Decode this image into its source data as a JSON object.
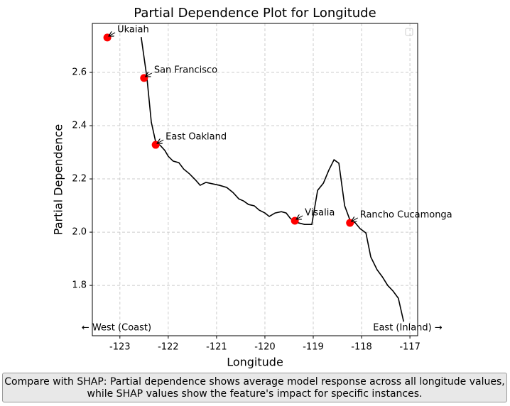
{
  "chart_data": {
    "type": "line",
    "title": "Partial Dependence Plot for Longitude",
    "x_label": "Longitude",
    "y_label": "Partial Dependence",
    "x": [
      -122.56,
      -122.44,
      -122.35,
      -122.26,
      -122.16,
      -122.07,
      -122.0,
      -121.9,
      -121.78,
      -121.68,
      -121.56,
      -121.43,
      -121.34,
      -121.22,
      -121.07,
      -120.94,
      -120.79,
      -120.66,
      -120.54,
      -120.44,
      -120.34,
      -120.22,
      -120.12,
      -120.0,
      -119.91,
      -119.79,
      -119.66,
      -119.56,
      -119.47,
      -119.31,
      -119.18,
      -119.03,
      -118.91,
      -118.79,
      -118.68,
      -118.57,
      -118.47,
      -118.35,
      -118.24,
      -118.13,
      -118.03,
      -117.91,
      -117.81,
      -117.68,
      -117.57,
      -117.46,
      -117.35,
      -117.24,
      -117.13
    ],
    "values": [
      2.733,
      2.579,
      2.413,
      2.339,
      2.325,
      2.307,
      2.285,
      2.267,
      2.261,
      2.237,
      2.219,
      2.195,
      2.176,
      2.187,
      2.181,
      2.176,
      2.168,
      2.149,
      2.125,
      2.117,
      2.104,
      2.099,
      2.083,
      2.072,
      2.059,
      2.072,
      2.077,
      2.072,
      2.051,
      2.035,
      2.029,
      2.029,
      2.157,
      2.184,
      2.232,
      2.272,
      2.259,
      2.099,
      2.045,
      2.035,
      2.013,
      1.997,
      1.907,
      1.859,
      1.832,
      1.8,
      1.779,
      1.752,
      1.664
    ],
    "color": "#000000",
    "points": {
      "names": [
        "Ukaiah",
        "San Francisco",
        "East Oakland",
        "Visalia",
        "Rancho Cucamonga"
      ],
      "x": [
        -123.26,
        -122.5,
        -122.26,
        -119.38,
        -118.24
      ],
      "y": [
        2.731,
        2.579,
        2.328,
        2.043,
        2.035
      ],
      "color": "#ff0000"
    },
    "direction_labels": [
      "← West (Coast)",
      "East (Inland) →"
    ],
    "xlim": [
      -123.57,
      -116.84
    ],
    "ylim": [
      1.611,
      2.784
    ],
    "xticks": [
      -123,
      -122,
      -121,
      -120,
      -119,
      -118,
      -117
    ],
    "yticks": [
      1.8,
      {
        "value": 2,
        "label": "2.0"
      },
      2.2,
      2.4,
      2.6
    ],
    "grid": true
  },
  "note": {
    "lines": [
      "Compare with SHAP: Partial dependence shows average model response across all longitude values,",
      "while SHAP values show the feature's impact for specific instances."
    ]
  }
}
